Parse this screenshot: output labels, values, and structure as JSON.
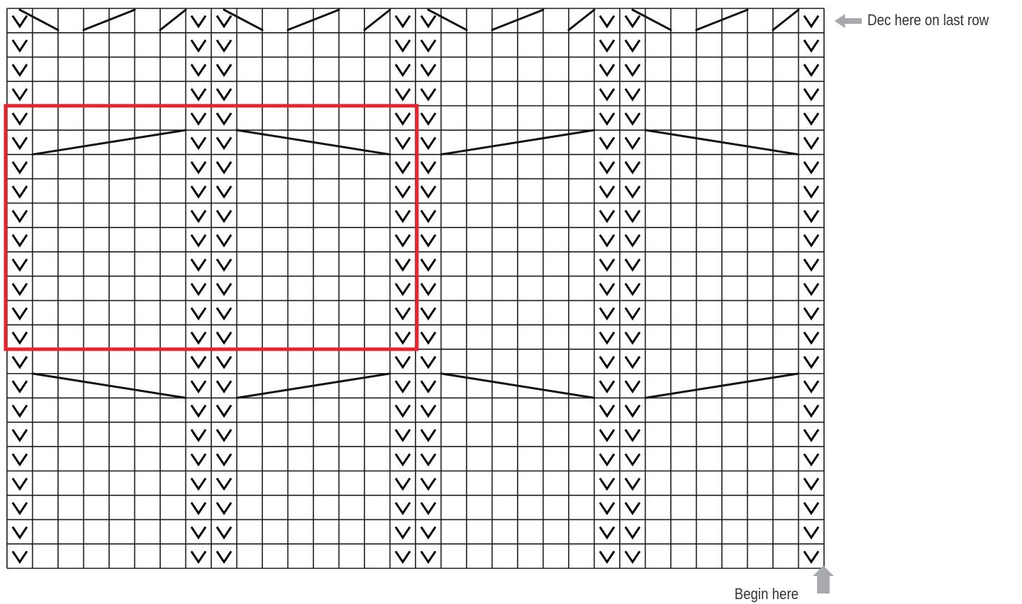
{
  "labels": {
    "dec": "Dec here on last row",
    "begin": "Begin here"
  },
  "chart_grid": {
    "columns": 32,
    "rows": 23,
    "slip_columns": [
      0,
      7,
      8,
      15,
      16,
      23,
      24,
      31
    ],
    "top_row_decreases": true,
    "highlight": {
      "col_start": 0,
      "col_end": 15,
      "row_start": 4,
      "row_end": 13
    }
  },
  "icons": {
    "dec_arrow": "arrow-left-icon",
    "begin_arrow": "arrow-up-icon",
    "slip_stitch": "v-check-icon"
  },
  "colors": {
    "grid": "#1a1a1a",
    "highlight": "#e8232d",
    "arrow": "#a7a9ac",
    "text": "#333333"
  }
}
